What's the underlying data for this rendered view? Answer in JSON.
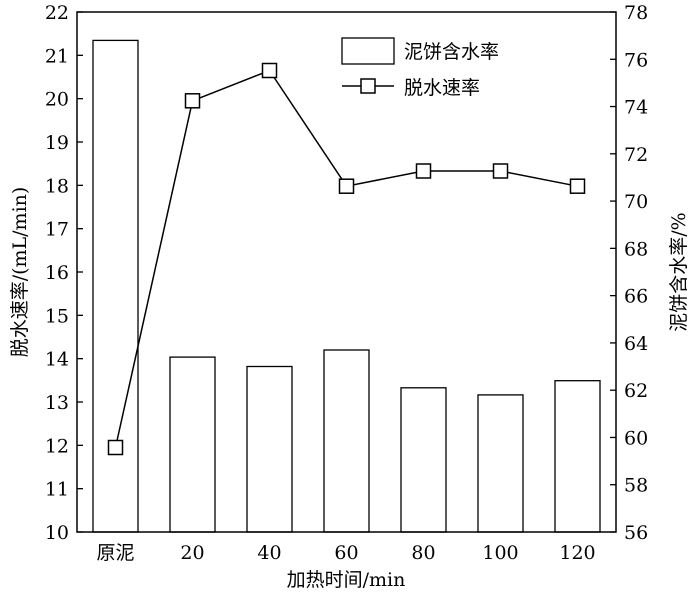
{
  "chart_data": {
    "type": "bar+line",
    "categories": [
      "原泥",
      "20",
      "40",
      "60",
      "80",
      "100",
      "120"
    ],
    "xlabel": "加热时间/min",
    "ylabel_left": "脱水速率/(mL/min)",
    "ylabel_right": "泥饼含水率/%",
    "ylim_left": [
      10,
      22
    ],
    "ylim_right": [
      56,
      78
    ],
    "yticks_left": [
      10,
      11,
      12,
      13,
      14,
      15,
      16,
      17,
      18,
      19,
      20,
      21,
      22
    ],
    "yticks_right": [
      56,
      58,
      60,
      62,
      64,
      66,
      68,
      70,
      72,
      74,
      76,
      78
    ],
    "series": [
      {
        "name": "泥饼含水率",
        "type": "bar",
        "axis": "right",
        "values": [
          76.8,
          63.4,
          63.0,
          63.7,
          62.1,
          61.8,
          62.4
        ]
      },
      {
        "name": "脱水速率",
        "type": "line",
        "axis": "left",
        "marker": "square",
        "values": [
          11.95,
          19.95,
          20.65,
          17.98,
          18.33,
          18.33,
          17.98
        ]
      }
    ],
    "legend": {
      "position": "top-right"
    },
    "grid": false
  }
}
